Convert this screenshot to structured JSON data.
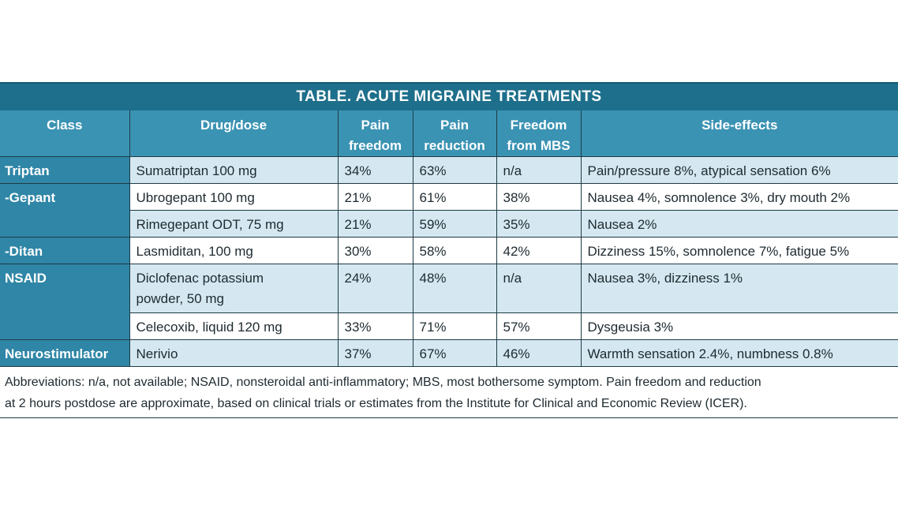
{
  "table": {
    "title": "TABLE. ACUTE MIGRAINE TREATMENTS",
    "headers": {
      "class": "Class",
      "drug": "Drug/dose",
      "pain_freedom_1": "Pain",
      "pain_freedom_2": "freedom",
      "pain_reduction_1": "Pain",
      "pain_reduction_2": "reduction",
      "mbs_1": "Freedom",
      "mbs_2": "from MBS",
      "side_effects": "Side-effects"
    },
    "rows": [
      {
        "class": "Triptan",
        "drug": "Sumatriptan 100 mg",
        "freedom": "34%",
        "reduction": "63%",
        "mbs": "n/a",
        "side": "Pain/pressure 8%, atypical sensation 6%"
      },
      {
        "class": "-Gepant",
        "drug": "Ubrogepant 100 mg",
        "freedom": "21%",
        "reduction": "61%",
        "mbs": "38%",
        "side": "Nausea 4%, somnolence 3%, dry mouth 2%"
      },
      {
        "class": "",
        "drug": "Rimegepant ODT, 75 mg",
        "freedom": "21%",
        "reduction": "59%",
        "mbs": "35%",
        "side": "Nausea 2%"
      },
      {
        "class": "-Ditan",
        "drug": "Lasmiditan, 100 mg",
        "freedom": "30%",
        "reduction": "58%",
        "mbs": "42%",
        "side": "Dizziness 15%, somnolence 7%, fatigue 5%"
      },
      {
        "class": "NSAID",
        "drug_line1": "Diclofenac potassium",
        "drug_line2": "powder, 50 mg",
        "freedom": "24%",
        "reduction": "48%",
        "mbs": "n/a",
        "side": "Nausea 3%, dizziness 1%"
      },
      {
        "class": "",
        "drug": "Celecoxib, liquid 120 mg",
        "freedom": "33%",
        "reduction": "71%",
        "mbs": "57%",
        "side": "Dysgeusia 3%"
      },
      {
        "class": "Neurostimulator",
        "drug": "Nerivio",
        "freedom": "37%",
        "reduction": "67%",
        "mbs": "46%",
        "side": "Warmth sensation 2.4%, numbness 0.8%"
      }
    ],
    "footnote_line1": "Abbreviations: n/a, not available; NSAID, nonsteroidal anti-inflammatory; MBS, most bothersome symptom. Pain freedom and reduction",
    "footnote_line2": "at 2 hours postdose are approximate, based on clinical trials or estimates from the Institute for Clinical and Economic Review (ICER)."
  },
  "colors": {
    "title_bg": "#1e6f8b",
    "header_bg": "#3b93b3",
    "class_bg": "#2f86a6",
    "alt_row_bg": "#d5e8f1"
  }
}
